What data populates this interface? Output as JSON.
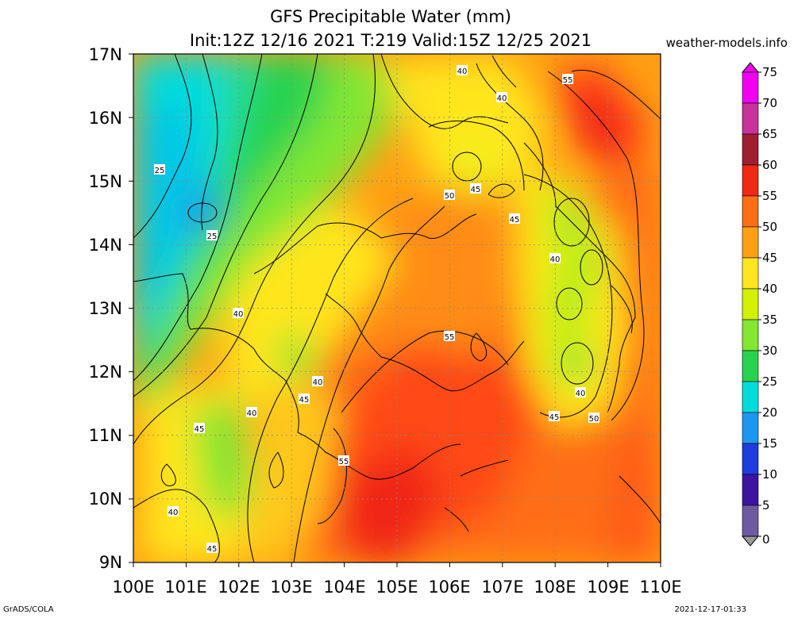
{
  "header": {
    "title_line1": "GFS Precipitable Water (mm)",
    "title_line2": "Init:12Z 12/16 2021 T:219 Valid:15Z 12/25 2021",
    "site": "weather-models.info"
  },
  "map": {
    "lat_labels": [
      "17N",
      "16N",
      "15N",
      "14N",
      "13N",
      "12N",
      "11N",
      "10N",
      "9N"
    ],
    "lon_labels": [
      "100E",
      "101E",
      "102E",
      "103E",
      "104E",
      "105E",
      "106E",
      "107E",
      "108E",
      "109E",
      "110E"
    ],
    "lat_range": [
      9,
      17
    ],
    "lon_range": [
      100,
      110
    ],
    "grid": true,
    "contour_labels": [
      "25",
      "25",
      "40",
      "40",
      "40",
      "40",
      "40",
      "40",
      "40",
      "40",
      "45",
      "45",
      "45",
      "45",
      "45",
      "45",
      "50",
      "50",
      "55",
      "55",
      "55"
    ]
  },
  "colorbar": {
    "levels": [
      "75",
      "70",
      "65",
      "60",
      "55",
      "50",
      "45",
      "40",
      "35",
      "30",
      "25",
      "20",
      "15",
      "10",
      "5",
      "0"
    ],
    "colors": [
      "#f000f0",
      "#a00060",
      "#c81e1e",
      "#f02814",
      "#ff6e14",
      "#ffa014",
      "#ffe61e",
      "#d2f000",
      "#82e632",
      "#28d250",
      "#00dcdc",
      "#1e96f0",
      "#1e3cdc",
      "#3c14a0",
      "#6e5aa0",
      "#9b9b9b"
    ]
  },
  "footer": {
    "credit": "GrADS/COLA",
    "timestamp": "2021-12-17-01:33"
  }
}
